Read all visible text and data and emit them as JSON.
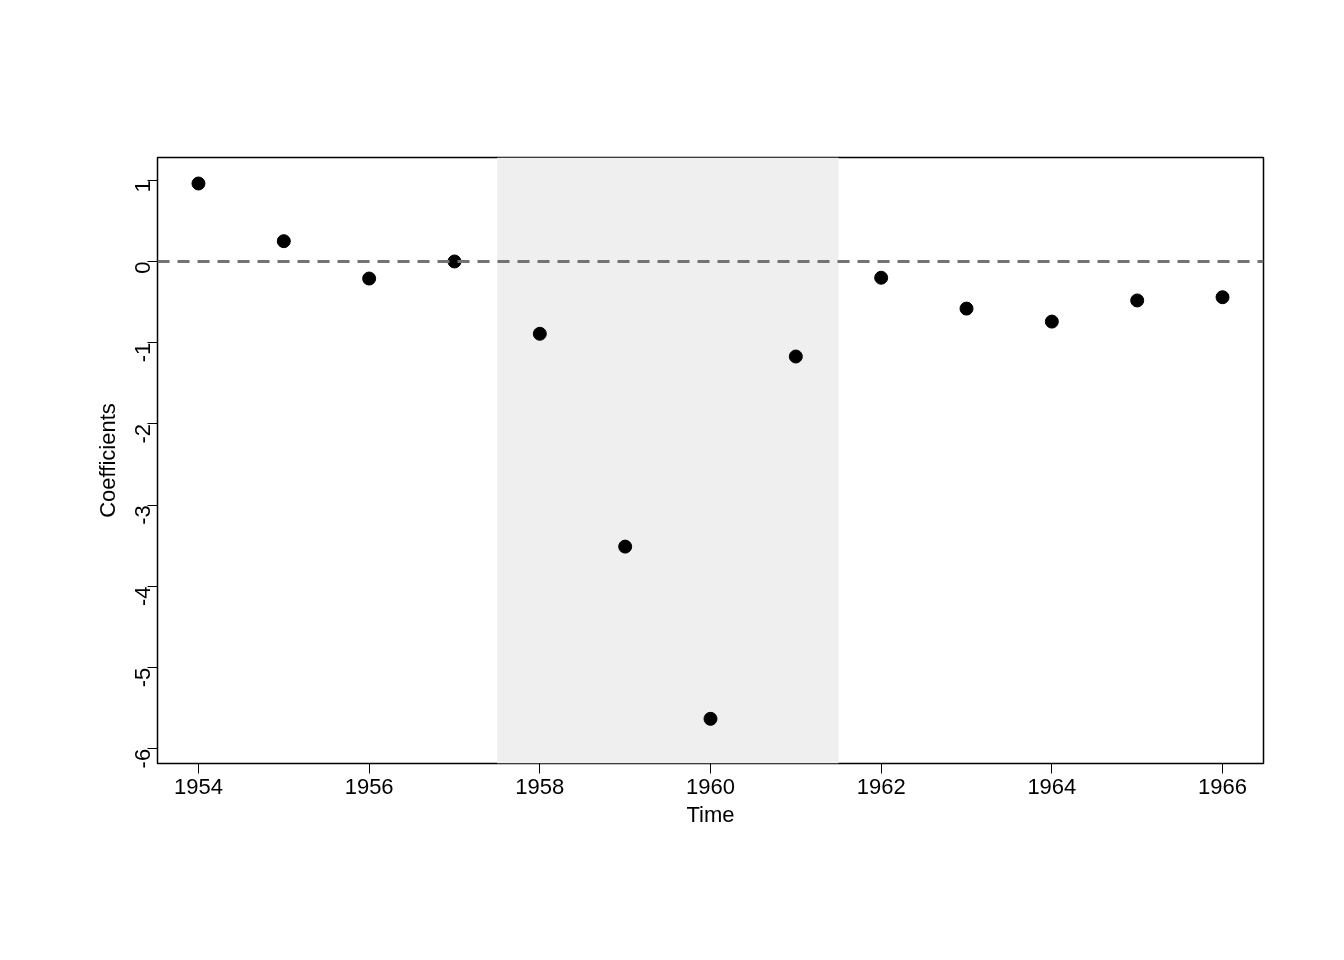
{
  "chart_data": {
    "type": "scatter",
    "xlabel": "Time",
    "ylabel": "Coefficients",
    "x": [
      1954,
      1955,
      1956,
      1957,
      1958,
      1959,
      1960,
      1961,
      1962,
      1963,
      1964,
      1965,
      1966
    ],
    "series": [
      {
        "color": "#000000",
        "values": [
          0.96,
          0.25,
          -0.21,
          0.0,
          -0.89,
          -3.51,
          -5.63,
          -1.17,
          -0.2,
          -0.58,
          -0.74,
          -0.48,
          -0.44
        ]
      }
    ],
    "marker": "circle",
    "xlim": [
      1953.52,
      1966.48
    ],
    "ylim": [
      -6.18,
      1.28
    ],
    "xticks": [
      1954,
      1956,
      1958,
      1960,
      1962,
      1964,
      1966
    ],
    "yticks": [
      -6,
      -5,
      -4,
      -3,
      -2,
      -1,
      0,
      1
    ],
    "ref_lines": [
      {
        "axis": "y",
        "value": 0,
        "color": "#737373",
        "line_style": "dashed"
      }
    ],
    "bands": [
      {
        "axis": "x",
        "from": 1957.5,
        "to": 1961.5,
        "color": "#efefef"
      }
    ],
    "grid": false
  }
}
